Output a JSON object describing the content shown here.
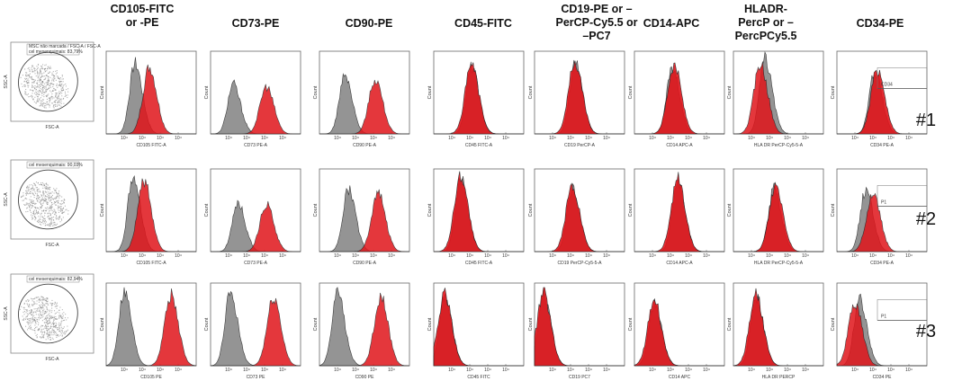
{
  "chart_data": {
    "type": "histogram-grid",
    "title": "",
    "columns": [
      {
        "key": "cd105",
        "header": [
          "CD105-FITC",
          "or -PE"
        ]
      },
      {
        "key": "cd73",
        "header": [
          "CD73-PE"
        ]
      },
      {
        "key": "cd90",
        "header": [
          "CD90-PE"
        ]
      },
      {
        "key": "cd45",
        "header": [
          "CD45-FITC"
        ]
      },
      {
        "key": "cd19",
        "header": [
          "CD19-PE or –",
          "PerCP-Cy5.5 or",
          "–PC7"
        ]
      },
      {
        "key": "cd14",
        "header": [
          "CD14-APC"
        ]
      },
      {
        "key": "hladr",
        "header": [
          "HLADR-",
          "PercP or –",
          "PercPCy5.5"
        ]
      },
      {
        "key": "cd34",
        "header": [
          "CD34-PE"
        ]
      }
    ],
    "rows": [
      {
        "label": "#1",
        "scatter": {
          "title": "MSC não marcada / FSC-A / FSC-A",
          "gate_label": "cel mesenquimais: 83,79%",
          "xlabel": "FSC-A",
          "ylabel": "SSC-A"
        },
        "panels": [
          {
            "xlabel": "CD105 FITC-A",
            "ylabel": "Count",
            "control_peak": 0.32,
            "positive_peak": 0.48,
            "peak_height": 0.85
          },
          {
            "xlabel": "CD73 PE-A",
            "ylabel": "Count",
            "control_peak": 0.25,
            "positive_peak": 0.62,
            "peak_height": 0.6
          },
          {
            "xlabel": "CD90 PE-A",
            "ylabel": "Count",
            "control_peak": 0.28,
            "positive_peak": 0.62,
            "peak_height": 0.7
          },
          {
            "xlabel": "CD45 FITC-A",
            "ylabel": "Count",
            "control_peak": 0.42,
            "positive_peak": 0.42,
            "peak_height": 0.85
          },
          {
            "xlabel": "CD19 PerCP-A",
            "ylabel": "Count",
            "control_peak": 0.45,
            "positive_peak": 0.45,
            "peak_height": 0.9
          },
          {
            "xlabel": "CD14 APC-A",
            "ylabel": "Count",
            "control_peak": 0.42,
            "positive_peak": 0.44,
            "peak_height": 0.85
          },
          {
            "xlabel": "HLA DR PerCP-Cy5-5-A",
            "ylabel": "Count",
            "control_peak": 0.35,
            "positive_peak": 0.3,
            "peak_height": 0.9
          },
          {
            "xlabel": "CD34 PE-A",
            "ylabel": "Count",
            "control_peak": 0.42,
            "positive_peak": 0.45,
            "peak_height": 0.8,
            "gate_label": "CD34"
          }
        ]
      },
      {
        "label": "#2",
        "scatter": {
          "title": "",
          "gate_label": "cel mesenquimais: 90,03%",
          "xlabel": "FSC-A",
          "ylabel": "SSC-A"
        },
        "panels": [
          {
            "xlabel": "CD105 FITC-A",
            "ylabel": "Count",
            "control_peak": 0.3,
            "positive_peak": 0.42,
            "peak_height": 0.9
          },
          {
            "xlabel": "CD73 PE-A",
            "ylabel": "Count",
            "control_peak": 0.3,
            "positive_peak": 0.62,
            "peak_height": 0.6
          },
          {
            "xlabel": "CD90 PE-A",
            "ylabel": "Count",
            "control_peak": 0.32,
            "positive_peak": 0.65,
            "peak_height": 0.75
          },
          {
            "xlabel": "CD45 FITC-A",
            "ylabel": "Count",
            "control_peak": 0.3,
            "positive_peak": 0.3,
            "peak_height": 0.92
          },
          {
            "xlabel": "CD19 PerCP-Cy5-5-A",
            "ylabel": "Count",
            "control_peak": 0.42,
            "positive_peak": 0.42,
            "peak_height": 0.8
          },
          {
            "xlabel": "CD14 APC-A",
            "ylabel": "Count",
            "control_peak": 0.48,
            "positive_peak": 0.48,
            "peak_height": 0.9
          },
          {
            "xlabel": "HLA DR PerCP-Cy5-5-A",
            "ylabel": "Count",
            "control_peak": 0.45,
            "positive_peak": 0.47,
            "peak_height": 0.8
          },
          {
            "xlabel": "CD34 PE-A",
            "ylabel": "Count",
            "control_peak": 0.32,
            "positive_peak": 0.4,
            "peak_height": 0.75,
            "gate_label": "P1"
          }
        ]
      },
      {
        "label": "#3",
        "scatter": {
          "title": "",
          "gate_label": "cel mesenquimais: 82,94%",
          "xlabel": "FSC-A",
          "ylabel": "SSC-A"
        },
        "panels": [
          {
            "xlabel": "CD105 PE",
            "ylabel": "Count",
            "control_peak": 0.2,
            "positive_peak": 0.72,
            "peak_height": 0.9
          },
          {
            "xlabel": "CD73 PE",
            "ylabel": "Count",
            "control_peak": 0.22,
            "positive_peak": 0.7,
            "peak_height": 0.88
          },
          {
            "xlabel": "CD90 PE",
            "ylabel": "Count",
            "control_peak": 0.2,
            "positive_peak": 0.68,
            "peak_height": 0.88
          },
          {
            "xlabel": "CD45 FITC",
            "ylabel": "Count",
            "control_peak": 0.12,
            "positive_peak": 0.12,
            "peak_height": 0.88
          },
          {
            "xlabel": "CD19 PC7",
            "ylabel": "Count",
            "control_peak": 0.1,
            "positive_peak": 0.1,
            "peak_height": 0.9
          },
          {
            "xlabel": "CD14 APC",
            "ylabel": "Count",
            "control_peak": 0.22,
            "positive_peak": 0.22,
            "peak_height": 0.8
          },
          {
            "xlabel": "HLA DR PERCP",
            "ylabel": "Count",
            "control_peak": 0.25,
            "positive_peak": 0.25,
            "peak_height": 0.88
          },
          {
            "xlabel": "CD34 PE",
            "ylabel": "Count",
            "control_peak": 0.25,
            "positive_peak": 0.2,
            "peak_height": 0.8,
            "gate_label": "P1"
          }
        ]
      }
    ],
    "series": [
      {
        "name": "isotype control",
        "color": "#8f8f8f"
      },
      {
        "name": "marker",
        "color": "#e0151b"
      }
    ],
    "grid": false,
    "legend": "none"
  }
}
